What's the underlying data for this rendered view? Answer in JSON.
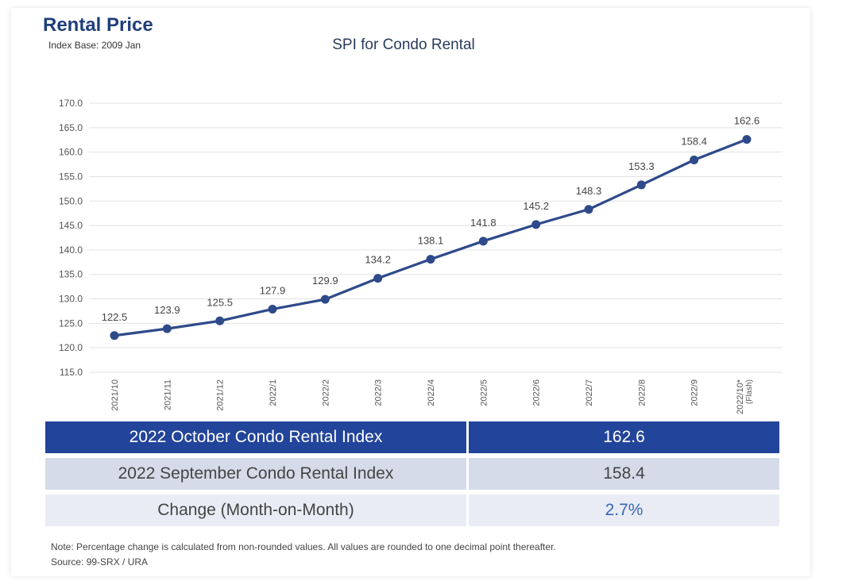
{
  "header": {
    "title": "Rental Price",
    "subtitle": "Index Base: 2009 Jan"
  },
  "chart_data": {
    "type": "line",
    "title": "SPI for Condo Rental",
    "categories": [
      "2021/10",
      "2021/11",
      "2021/12",
      "2022/1",
      "2022/2",
      "2022/3",
      "2022/4",
      "2022/5",
      "2022/6",
      "2022/7",
      "2022/8",
      "2022/9",
      "2022/10*"
    ],
    "last_category_note": "(Flash)",
    "values": [
      122.5,
      123.9,
      125.5,
      127.9,
      129.9,
      134.2,
      138.1,
      141.8,
      145.2,
      148.3,
      153.3,
      158.4,
      162.6
    ],
    "value_labels": [
      "122.5",
      "123.9",
      "125.5",
      "127.9",
      "129.9",
      "134.2",
      "138.1",
      "141.8",
      "145.2",
      "148.3",
      "153.3",
      "158.4",
      "162.6"
    ],
    "ylim": [
      115,
      170
    ],
    "yticks": [
      "115.0",
      "120.0",
      "125.0",
      "130.0",
      "135.0",
      "140.0",
      "145.0",
      "150.0",
      "155.0",
      "160.0",
      "165.0",
      "170.0"
    ],
    "ytick_values": [
      115,
      120,
      125,
      130,
      135,
      140,
      145,
      150,
      155,
      160,
      165,
      170
    ],
    "grid": true,
    "colors": {
      "line": "#2e4a8a",
      "grid": "#e3e3e3",
      "tick_text": "#555555"
    }
  },
  "table": {
    "rows": [
      {
        "label": "2022 October Condo Rental Index",
        "value": "162.6"
      },
      {
        "label": "2022 September Condo Rental Index",
        "value": "158.4"
      },
      {
        "label": "Change (Month-on-Month)",
        "value": "2.7%"
      }
    ],
    "colors": {
      "highlight": "#22449a",
      "row2": "#d5dbe8",
      "row3": "#e9ecf4",
      "change_text": "#3a66b4"
    }
  },
  "footer": {
    "note": "Note: Percentage change is calculated from non-rounded values.  All values are rounded to one decimal point thereafter.",
    "source": "Source: 99-SRX / URA"
  }
}
